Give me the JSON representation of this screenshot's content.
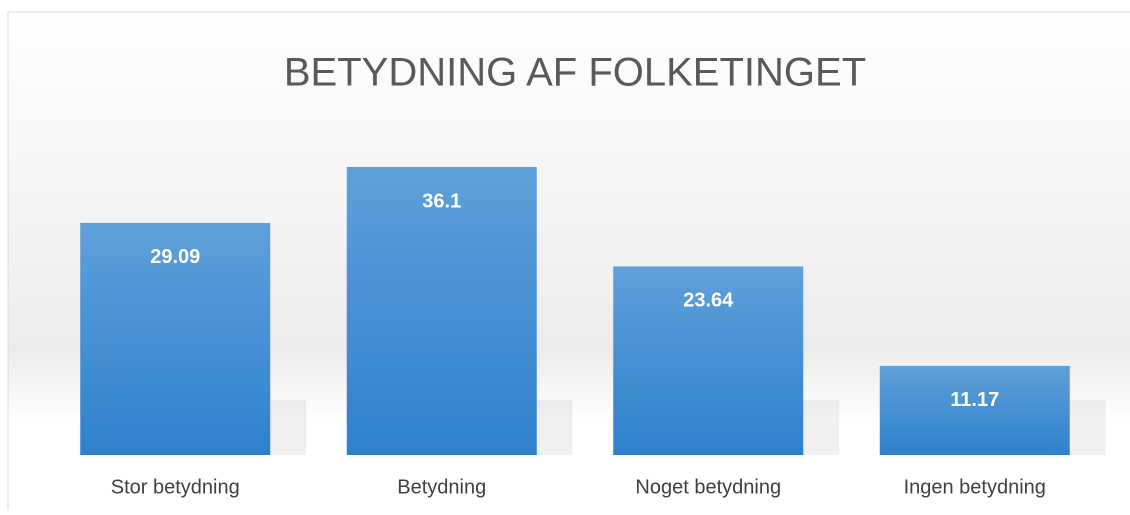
{
  "chart_data": {
    "type": "bar",
    "title": "BETYDNING AF FOLKETINGET",
    "categories": [
      "Stor betydning",
      "Betydning",
      "Noget betydning",
      "Ingen betydning"
    ],
    "values": [
      29.09,
      36.1,
      23.64,
      11.17
    ],
    "color": "#4a90d4"
  }
}
